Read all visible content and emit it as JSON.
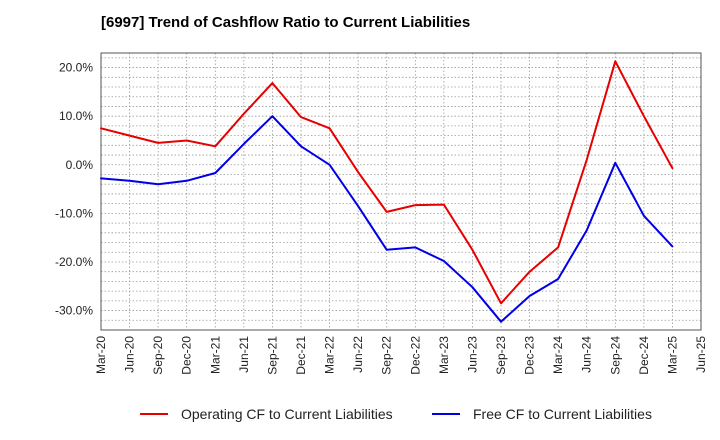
{
  "chart_data": {
    "type": "line",
    "title": "[6997]  Trend of Cashflow Ratio to Current Liabilities",
    "xlabel": "",
    "ylabel": "",
    "y_tick_labels": [
      "20.0%",
      "10.0%",
      "0.0%",
      "-10.0%",
      "-20.0%",
      "-30.0%"
    ],
    "y_ticks": [
      20,
      10,
      0,
      -10,
      -20,
      -30
    ],
    "ylim": [
      -34,
      23
    ],
    "x_tick_labels": [
      "Mar-20",
      "Jun-20",
      "Sep-20",
      "Dec-20",
      "Mar-21",
      "Jun-21",
      "Sep-21",
      "Dec-21",
      "Mar-22",
      "Jun-22",
      "Sep-22",
      "Dec-22",
      "Mar-23",
      "Jun-23",
      "Sep-23",
      "Dec-23",
      "Mar-24",
      "Jun-24",
      "Sep-24",
      "Dec-24",
      "Mar-25",
      "Jun-25"
    ],
    "x": [
      "Mar-20",
      "Jun-20",
      "Sep-20",
      "Dec-20",
      "Mar-21",
      "Jun-21",
      "Sep-21",
      "Dec-21",
      "Mar-22",
      "Jun-22",
      "Sep-22",
      "Dec-22",
      "Mar-23",
      "Jun-23",
      "Sep-23",
      "Dec-23",
      "Mar-24",
      "Jun-24",
      "Sep-24",
      "Dec-24",
      "Mar-25"
    ],
    "grid": true,
    "legend_position": "bottom",
    "series": [
      {
        "name": "Operating CF to Current Liabilities",
        "color": "#e60000",
        "values": [
          7.5,
          6.0,
          4.5,
          5.0,
          3.8,
          10.5,
          16.8,
          9.8,
          7.5,
          -1.5,
          -9.7,
          -8.3,
          -8.2,
          -17.5,
          -28.5,
          -22.0,
          -17.0,
          1.0,
          21.3,
          10.0,
          -0.7
        ]
      },
      {
        "name": "Free CF to Current Liabilities",
        "color": "#0000e6",
        "values": [
          -2.8,
          -3.3,
          -4.0,
          -3.3,
          -1.7,
          4.3,
          10.0,
          3.8,
          0.0,
          -8.5,
          -17.5,
          -17.0,
          -19.8,
          -25.2,
          -32.3,
          -27.0,
          -23.5,
          -13.5,
          0.4,
          -10.5,
          -16.8
        ]
      }
    ]
  }
}
